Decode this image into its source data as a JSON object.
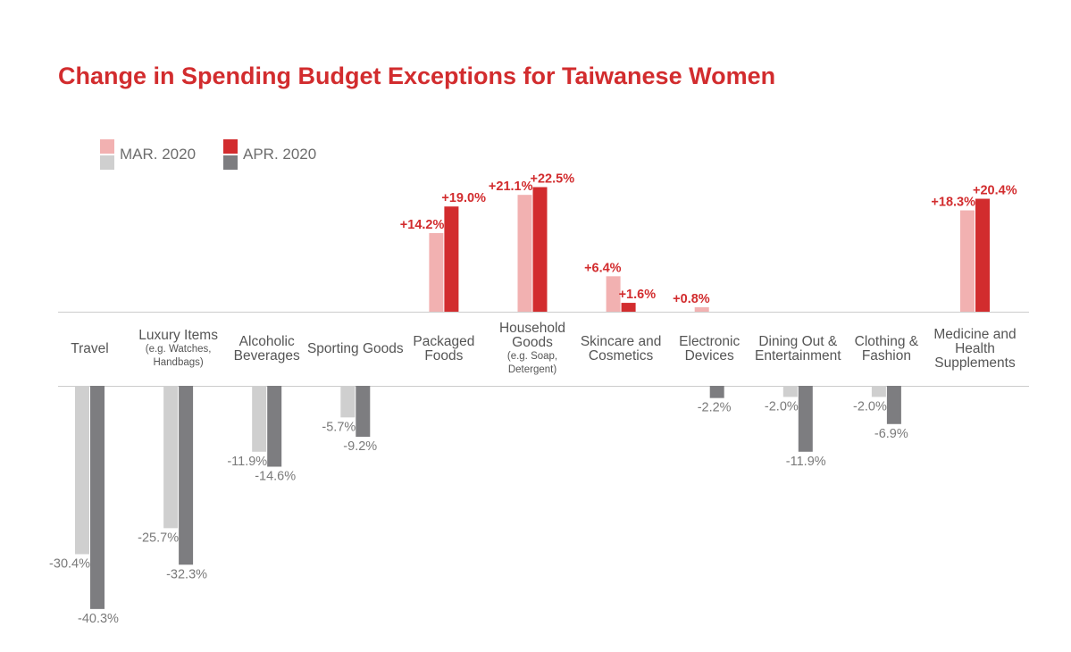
{
  "chart_data": {
    "type": "bar",
    "title": "Change in Spending Budget Exceptions for Taiwanese Women",
    "categories": [
      {
        "name": "Travel",
        "sub": ""
      },
      {
        "name": "Luxury Items",
        "sub": "(e.g. Watches, Handbags)"
      },
      {
        "name": "Alcoholic Beverages",
        "sub": ""
      },
      {
        "name": "Sporting Goods",
        "sub": ""
      },
      {
        "name": "Packaged Foods",
        "sub": ""
      },
      {
        "name": "Household Goods",
        "sub": "(e.g. Soap, Detergent)"
      },
      {
        "name": "Skincare and Cosmetics",
        "sub": ""
      },
      {
        "name": "Electronic Devices",
        "sub": ""
      },
      {
        "name": "Dining Out & Entertainment",
        "sub": ""
      },
      {
        "name": "Clothing & Fashion",
        "sub": ""
      },
      {
        "name": "Medicine and Health Supplements",
        "sub": ""
      }
    ],
    "series": [
      {
        "name": "MAR. 2020",
        "values": [
          -30.4,
          -25.7,
          -11.9,
          -5.7,
          14.2,
          21.1,
          6.4,
          0.8,
          -2.0,
          -2.0,
          18.3
        ],
        "labels": [
          "-30.4%",
          "-25.7%",
          "-11.9%",
          "-5.7%",
          "+14.2%",
          "+21.1%",
          "+6.4%",
          "+0.8%",
          "-2.0%",
          "-2.0%",
          "+18.3%"
        ]
      },
      {
        "name": "APR. 2020",
        "values": [
          -40.3,
          -32.3,
          -14.6,
          -9.2,
          19.0,
          22.5,
          1.6,
          -2.2,
          -11.9,
          -6.9,
          20.4
        ],
        "labels": [
          "-40.3%",
          "-32.3%",
          "-14.6%",
          "-9.2%",
          "+19.0%",
          "+22.5%",
          "+1.6%",
          "-2.2%",
          "-11.9%",
          "-6.9%",
          "+20.4%"
        ]
      }
    ],
    "legend": [
      {
        "name": "MAR. 2020"
      },
      {
        "name": "APR. 2020"
      }
    ],
    "colors": {
      "mar_pos": "#f2b1b1",
      "apr_pos": "#d22c2e",
      "mar_neg": "#cfcfcf",
      "apr_neg": "#7d7d80",
      "pos_label": "#d22c2e",
      "neg_label": "#7a7a7a",
      "axis": "#cccccc"
    }
  }
}
